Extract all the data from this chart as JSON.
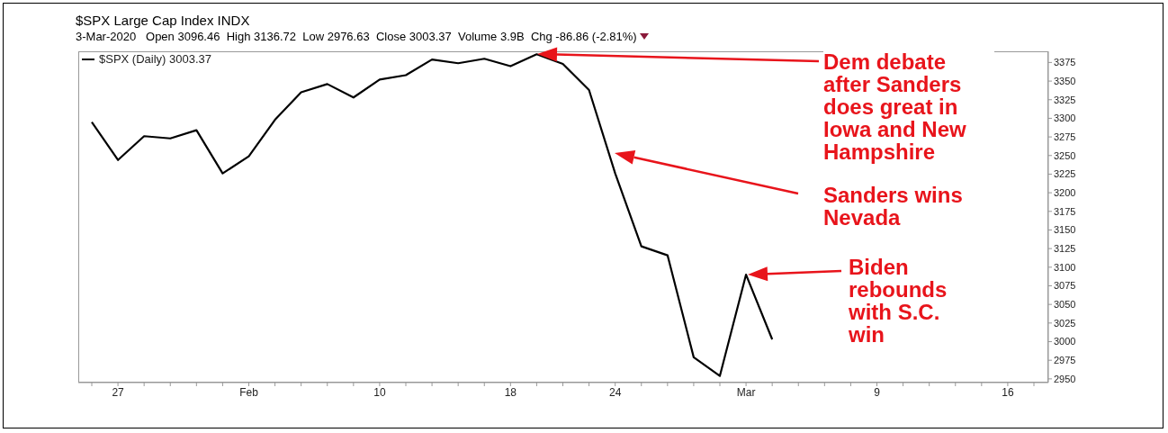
{
  "chart_data": {
    "type": "line",
    "title": "$SPX Large Cap Index INDX",
    "subtitle": "3-Mar-2020   Open 3096.46  High 3136.72  Low 2976.63  Close 3003.37  Volume 3.9B  Chg -86.86 (-2.81%)",
    "categories": [
      null,
      "27",
      null,
      null,
      null,
      null,
      "Feb",
      null,
      null,
      null,
      null,
      "10",
      null,
      null,
      null,
      null,
      "18",
      null,
      null,
      null,
      "24",
      null,
      null,
      null,
      null,
      "Mar",
      null,
      null,
      null,
      null,
      "9",
      null,
      null,
      null,
      null,
      "16",
      null
    ],
    "series": [
      {
        "name": "$SPX (Daily) 3003.37",
        "color": "#000000",
        "values": [
          3295,
          3244,
          3276,
          3273,
          3284,
          3226,
          3249,
          3298,
          3335,
          3346,
          3328,
          3352,
          3358,
          3379,
          3374,
          3380,
          3370,
          3386,
          3373,
          3338,
          3226,
          3128,
          3116,
          2979,
          2954,
          3090,
          3003,
          null,
          null,
          null,
          null,
          null,
          null,
          null,
          null,
          null,
          null
        ]
      }
    ],
    "ylim": [
      2945,
      3390
    ],
    "yticks": [
      2950,
      2975,
      3000,
      3025,
      3050,
      3075,
      3100,
      3125,
      3150,
      3175,
      3200,
      3225,
      3250,
      3275,
      3300,
      3325,
      3350,
      3375
    ],
    "grid": false,
    "legend": "top left",
    "annotations": [
      "Dem debate after Sanders does great in Iowa and New Hampshire",
      "Sanders wins Nevada",
      "Biden rebounds with S.C. win"
    ]
  }
}
